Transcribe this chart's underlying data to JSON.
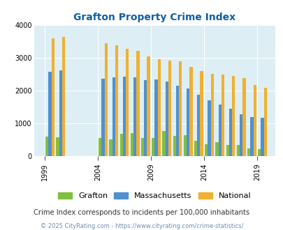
{
  "title": "Grafton Property Crime Index",
  "title_color": "#1060a0",
  "subtitle": "Crime Index corresponds to incidents per 100,000 inhabitants",
  "footer": "© 2025 CityRating.com - https://www.cityrating.com/crime-statistics/",
  "years": [
    2000,
    2001,
    2005,
    2006,
    2007,
    2008,
    2009,
    2010,
    2011,
    2012,
    2013,
    2014,
    2015,
    2016,
    2017,
    2018,
    2019,
    2020
  ],
  "grafton": [
    600,
    580,
    560,
    510,
    680,
    700,
    555,
    560,
    770,
    630,
    645,
    475,
    360,
    440,
    350,
    340,
    250,
    220
  ],
  "massachusetts": [
    2580,
    2625,
    2375,
    2420,
    2425,
    2420,
    2330,
    2340,
    2275,
    2165,
    2070,
    1870,
    1720,
    1590,
    1460,
    1275,
    1195,
    1175
  ],
  "national": [
    3610,
    3650,
    3450,
    3380,
    3290,
    3225,
    3040,
    2960,
    2920,
    2890,
    2740,
    2600,
    2510,
    2490,
    2450,
    2390,
    2175,
    2090
  ],
  "xtick_labels": [
    "1999",
    "2004",
    "2009",
    "2014",
    "2019"
  ],
  "xtick_positions": [
    1999.5,
    2004.5,
    2009.5,
    2014.5,
    2019.5
  ],
  "grafton_color": "#80c040",
  "mass_color": "#5090d0",
  "national_color": "#f0b030",
  "plot_bg": "#ddeef4",
  "ylim": [
    0,
    4000
  ],
  "yticks": [
    0,
    1000,
    2000,
    3000,
    4000
  ],
  "bar_width": 0.28,
  "figsize": [
    4.06,
    3.3
  ],
  "dpi": 100
}
